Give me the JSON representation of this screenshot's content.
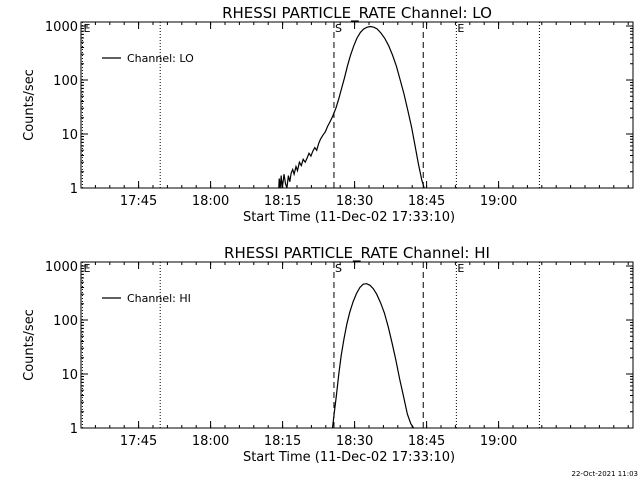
{
  "footer_timestamp": "22-Oct-2021 11:03",
  "chart_data": [
    {
      "type": "line",
      "title": "RHESSI PARTICLE_RATE Channel: LO",
      "xlabel": "Start Time (11-Dec-02 17:33:10)",
      "ylabel": "Counts/sec",
      "x_unit": "minutes after 17:33:10",
      "xlim": [
        0,
        115
      ],
      "ylim": [
        1,
        1000
      ],
      "yscale": "log",
      "x_ticks": [
        {
          "x": 12,
          "label": "17:45"
        },
        {
          "x": 27,
          "label": "18:00"
        },
        {
          "x": 42,
          "label": "18:15"
        },
        {
          "x": 57,
          "label": "18:30"
        },
        {
          "x": 72,
          "label": "18:45"
        },
        {
          "x": 87,
          "label": "19:00"
        }
      ],
      "y_ticks": [
        {
          "y": 1,
          "label": "1"
        },
        {
          "y": 10,
          "label": "10"
        },
        {
          "y": 100,
          "label": "100"
        },
        {
          "y": 1000,
          "label": "1000"
        }
      ],
      "legend": {
        "entries": [
          "Channel: LO"
        ],
        "position": "top-left"
      },
      "vlines": [
        {
          "x": 0.3,
          "style": "dotted",
          "label": "E"
        },
        {
          "x": 16.5,
          "style": "dotted",
          "label": ""
        },
        {
          "x": 52.7,
          "style": "dashed",
          "label": "S"
        },
        {
          "x": 71.3,
          "style": "dashed",
          "label": ""
        },
        {
          "x": 78.2,
          "style": "dotted",
          "label": "E"
        },
        {
          "x": 95.5,
          "style": "dotted",
          "label": ""
        }
      ],
      "series": [
        {
          "name": "Channel: LO",
          "x": [
            41.2,
            41.3,
            41.5,
            41.7,
            41.9,
            42.1,
            42.3,
            42.6,
            42.9,
            43.2,
            43.5,
            43.8,
            44.1,
            44.4,
            44.8,
            45.1,
            45.5,
            45.9,
            46.3,
            46.7,
            47.1,
            47.5,
            47.9,
            48.3,
            48.7,
            49.1,
            49.5,
            49.9,
            50.4,
            50.9,
            51.4,
            51.9,
            52.5,
            53.1,
            53.7,
            54.3,
            54.9,
            55.5,
            56.1,
            56.8,
            57.5,
            58.2,
            58.9,
            59.6,
            60.3,
            61.0,
            61.7,
            62.5,
            63.3,
            64.1,
            64.9,
            65.7,
            66.5,
            67.3,
            68.1,
            68.9,
            69.6,
            70.3,
            71.0,
            71.5
          ],
          "y": [
            1,
            1.5,
            1,
            1.7,
            1,
            1.3,
            1.8,
            1.2,
            1,
            1.7,
            1.3,
            1.9,
            2.2,
            1.8,
            2.5,
            2.1,
            3.0,
            2.6,
            3.4,
            3.0,
            3.6,
            4.4,
            3.9,
            4.8,
            5.6,
            5.0,
            6.6,
            8.0,
            9.5,
            11,
            14,
            17,
            22,
            30,
            45,
            70,
            110,
            180,
            280,
            420,
            600,
            760,
            880,
            950,
            980,
            950,
            880,
            740,
            590,
            430,
            290,
            180,
            100,
            55,
            27,
            13,
            6,
            2.8,
            1.4,
            1
          ]
        }
      ]
    },
    {
      "type": "line",
      "title": "RHESSI PARTICLE_RATE Channel: HI",
      "xlabel": "Start Time (11-Dec-02 17:33:10)",
      "ylabel": "Counts/sec",
      "x_unit": "minutes after 17:33:10",
      "xlim": [
        0,
        115
      ],
      "ylim": [
        1,
        1000
      ],
      "yscale": "log",
      "x_ticks": [
        {
          "x": 12,
          "label": "17:45"
        },
        {
          "x": 27,
          "label": "18:00"
        },
        {
          "x": 42,
          "label": "18:15"
        },
        {
          "x": 57,
          "label": "18:30"
        },
        {
          "x": 72,
          "label": "18:45"
        },
        {
          "x": 87,
          "label": "19:00"
        }
      ],
      "y_ticks": [
        {
          "y": 1,
          "label": "1"
        },
        {
          "y": 10,
          "label": "10"
        },
        {
          "y": 100,
          "label": "100"
        },
        {
          "y": 1000,
          "label": "1000"
        }
      ],
      "legend": {
        "entries": [
          "Channel: HI"
        ],
        "position": "top-left"
      },
      "vlines": [
        {
          "x": 0.3,
          "style": "dotted",
          "label": "E"
        },
        {
          "x": 16.5,
          "style": "dotted",
          "label": ""
        },
        {
          "x": 52.7,
          "style": "dashed",
          "label": "S"
        },
        {
          "x": 71.3,
          "style": "dashed",
          "label": ""
        },
        {
          "x": 78.2,
          "style": "dotted",
          "label": "E"
        },
        {
          "x": 95.5,
          "style": "dotted",
          "label": ""
        }
      ],
      "series": [
        {
          "name": "Channel: HI",
          "x": [
            52.4,
            52.8,
            53.2,
            53.7,
            54.2,
            54.8,
            55.4,
            56.0,
            56.7,
            57.4,
            58.1,
            58.8,
            59.5,
            60.2,
            60.9,
            61.6,
            62.4,
            63.2,
            64.0,
            64.8,
            65.6,
            66.4,
            67.2,
            68.0,
            68.7,
            69.3
          ],
          "y": [
            1,
            2,
            4,
            10,
            22,
            45,
            85,
            140,
            220,
            310,
            400,
            460,
            470,
            440,
            380,
            300,
            210,
            135,
            75,
            38,
            18,
            8,
            3.8,
            1.8,
            1.2,
            1
          ]
        }
      ]
    }
  ]
}
